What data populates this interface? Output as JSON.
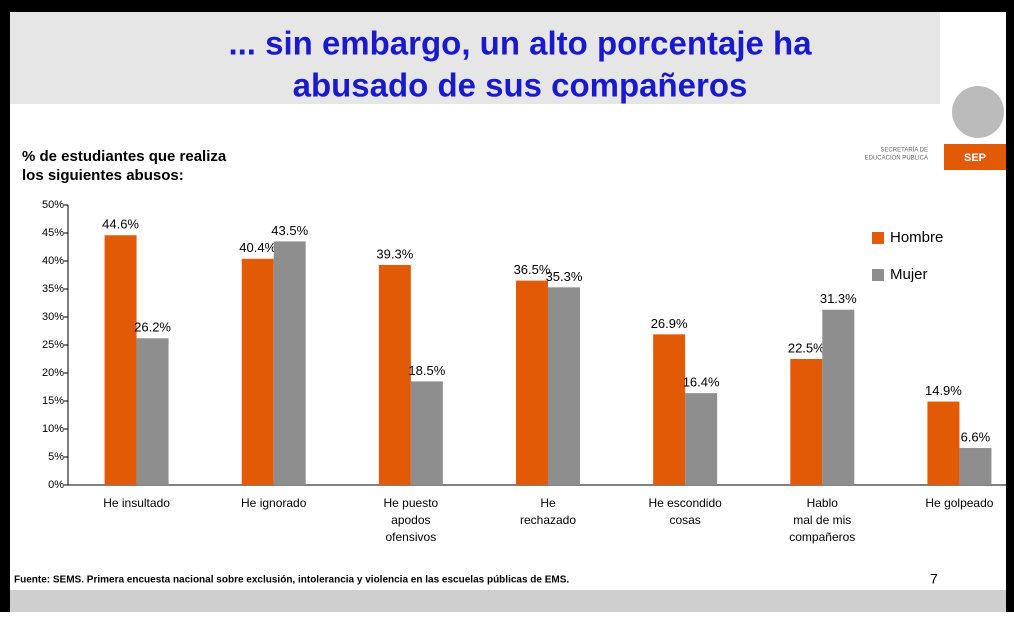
{
  "chart_data": {
    "type": "bar",
    "title": [
      "... sin embargo, un alto porcentaje ha",
      "abusado de sus compañeros"
    ],
    "subtitle": [
      "% de estudiantes que realiza",
      "los siguientes abusos:"
    ],
    "logo": {
      "org": [
        "SECRETARÍA DE",
        "EDUCACIÓN PÚBLICA"
      ],
      "acronym": "SEP"
    },
    "source": "Fuente: SEMS. Primera encuesta nacional sobre exclusión, intolerancia y violencia en las escuelas públicas de EMS.",
    "page_number": "7",
    "categories": [
      [
        "He insultado"
      ],
      [
        "He ignorado"
      ],
      [
        "He puesto",
        "apodos",
        "ofensivos"
      ],
      [
        "He",
        "rechazado"
      ],
      [
        "He escondido",
        "cosas"
      ],
      [
        "Hablo",
        "mal de mis",
        "compañeros"
      ],
      [
        "He golpeado"
      ]
    ],
    "series": [
      {
        "name": "Hombre",
        "color": "#e25a06",
        "values": [
          44.6,
          40.4,
          39.3,
          36.5,
          26.9,
          22.5,
          14.9
        ],
        "value_labels": [
          "44.6%",
          "40.4%",
          "39.3%",
          "36.5%",
          "26.9%",
          "22.5%",
          "14.9%"
        ]
      },
      {
        "name": "Mujer",
        "color": "#8e8e8e",
        "values": [
          26.2,
          43.5,
          18.5,
          35.3,
          16.4,
          31.3,
          6.6
        ],
        "value_labels": [
          "26.2%",
          "43.5%",
          "18.5%",
          "35.3%",
          "16.4%",
          "31.3%",
          "6.6%"
        ]
      }
    ],
    "ylim": [
      0,
      50
    ],
    "yticks": [
      {
        "value": 0,
        "label": "0%"
      },
      {
        "value": 5,
        "label": "5%"
      },
      {
        "value": 10,
        "label": "10%"
      },
      {
        "value": 15,
        "label": "15%"
      },
      {
        "value": 20,
        "label": "20%"
      },
      {
        "value": 25,
        "label": "25%"
      },
      {
        "value": 30,
        "label": "30%"
      },
      {
        "value": 35,
        "label": "35%"
      },
      {
        "value": 40,
        "label": "40%"
      },
      {
        "value": 45,
        "label": "45%"
      },
      {
        "value": 50,
        "label": "50%"
      }
    ],
    "legend": "right"
  }
}
